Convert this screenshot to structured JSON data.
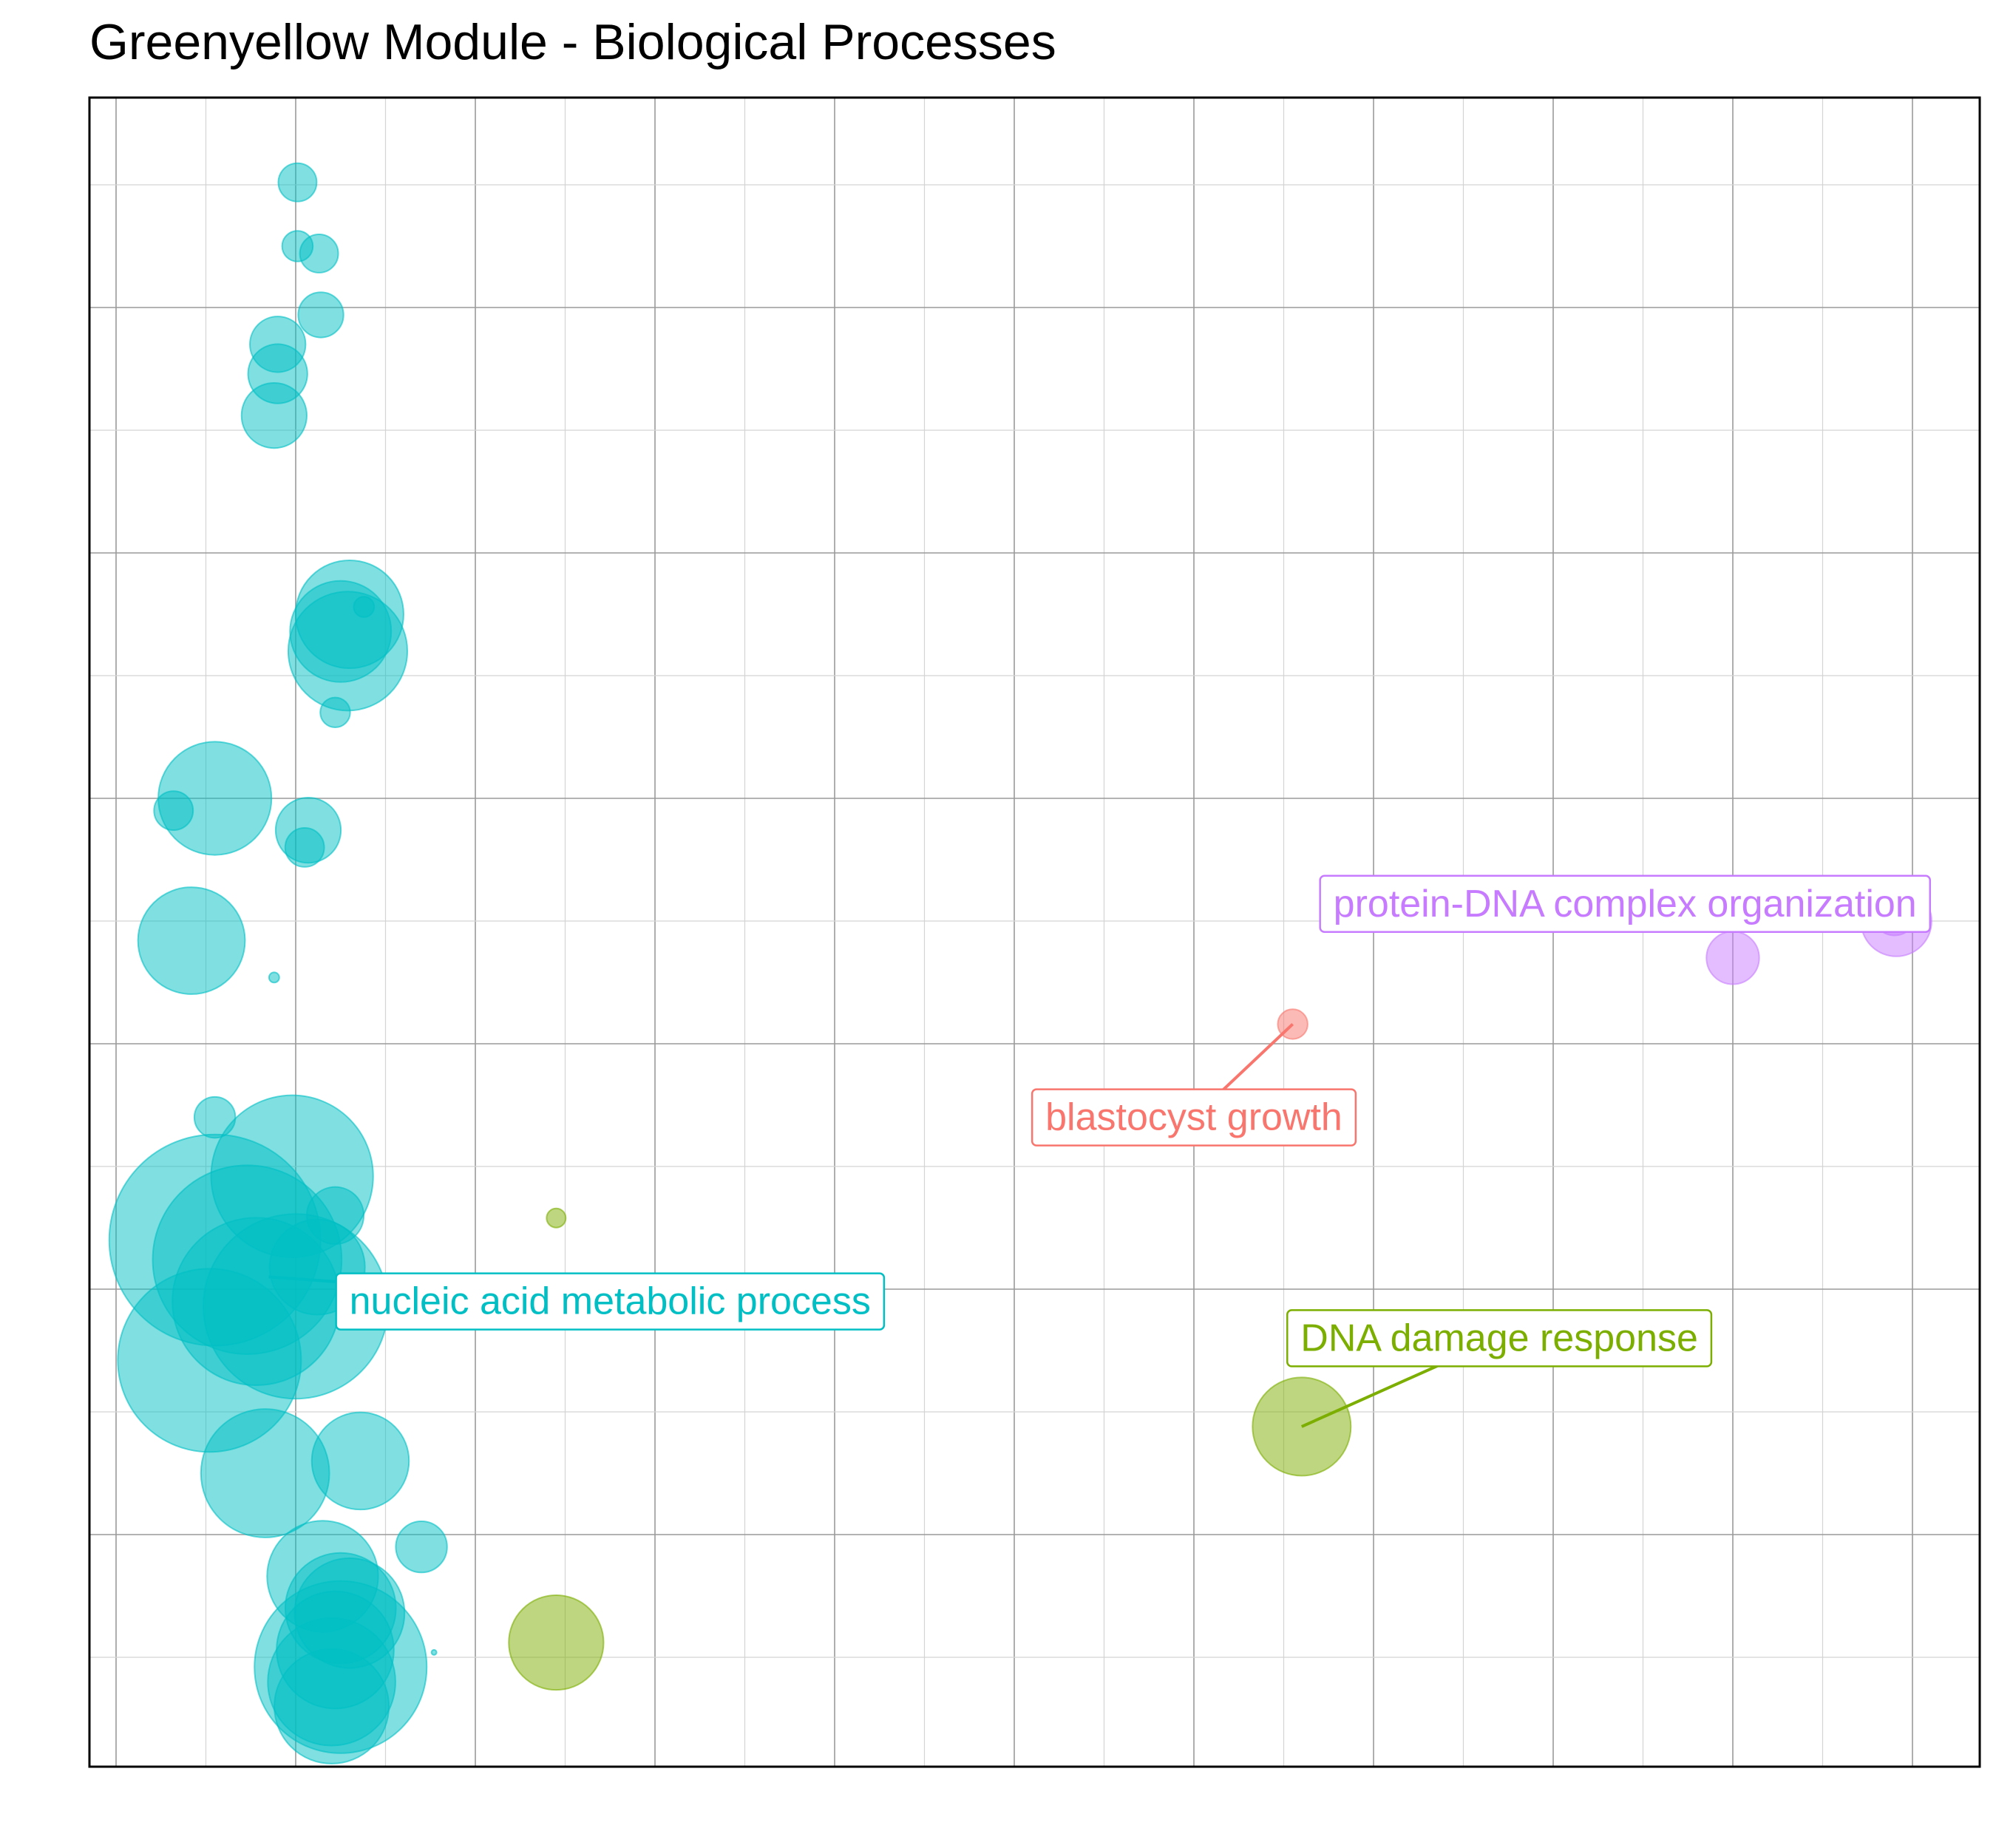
{
  "chart_data": {
    "type": "scatter",
    "title": "Greenyellow Module - Biological Processes",
    "xlabel": "",
    "ylabel": "",
    "xlim": [
      0,
      10.5
    ],
    "ylim": [
      0,
      6.8
    ],
    "grid": true,
    "legend": "none",
    "colors": {
      "cyan": "#00BFC4",
      "green": "#7CAE00",
      "red": "#F8766D",
      "purple": "#C77CFF"
    },
    "bubble_scale": {
      "min_area": 0,
      "max_area": 100
    },
    "points": [
      {
        "x": 1.01,
        "y": 6.51,
        "size": 2.8,
        "group": "cyan"
      },
      {
        "x": 1.01,
        "y": 6.25,
        "size": 1.8,
        "group": "cyan"
      },
      {
        "x": 1.13,
        "y": 6.22,
        "size": 2.8,
        "group": "cyan"
      },
      {
        "x": 1.14,
        "y": 5.97,
        "size": 3.9,
        "group": "cyan"
      },
      {
        "x": 0.9,
        "y": 5.85,
        "size": 5.9,
        "group": "cyan"
      },
      {
        "x": 0.9,
        "y": 5.73,
        "size": 6.7,
        "group": "cyan"
      },
      {
        "x": 0.88,
        "y": 5.56,
        "size": 8.1,
        "group": "cyan"
      },
      {
        "x": 1.3,
        "y": 4.75,
        "size": 22.2,
        "group": "cyan"
      },
      {
        "x": 1.29,
        "y": 4.6,
        "size": 27.0,
        "group": "cyan"
      },
      {
        "x": 1.25,
        "y": 4.68,
        "size": 19.5,
        "group": "cyan"
      },
      {
        "x": 1.38,
        "y": 4.78,
        "size": 0.8,
        "group": "cyan"
      },
      {
        "x": 1.22,
        "y": 4.35,
        "size": 1.7,
        "group": "cyan"
      },
      {
        "x": 0.55,
        "y": 4.0,
        "size": 24.4,
        "group": "cyan"
      },
      {
        "x": 0.32,
        "y": 3.95,
        "size": 2.9,
        "group": "cyan"
      },
      {
        "x": 1.07,
        "y": 3.87,
        "size": 8.1,
        "group": "cyan"
      },
      {
        "x": 1.05,
        "y": 3.8,
        "size": 2.9,
        "group": "cyan"
      },
      {
        "x": 0.42,
        "y": 3.42,
        "size": 21.8,
        "group": "cyan"
      },
      {
        "x": 0.88,
        "y": 3.27,
        "size": 0.2,
        "group": "cyan"
      },
      {
        "x": 0.55,
        "y": 2.7,
        "size": 3.2,
        "group": "cyan"
      },
      {
        "x": 0.98,
        "y": 2.46,
        "size": 50.0,
        "group": "cyan"
      },
      {
        "x": 0.55,
        "y": 2.2,
        "size": 85.0,
        "group": "cyan"
      },
      {
        "x": 1.22,
        "y": 2.3,
        "size": 6.2,
        "group": "cyan"
      },
      {
        "x": 0.73,
        "y": 2.12,
        "size": 68.0,
        "group": "cyan"
      },
      {
        "x": 1.12,
        "y": 2.09,
        "size": 17.3,
        "group": "cyan"
      },
      {
        "x": 0.78,
        "y": 1.95,
        "size": 53.5,
        "group": "cyan"
      },
      {
        "x": 1.0,
        "y": 1.93,
        "size": 65.0,
        "group": "cyan"
      },
      {
        "x": 0.52,
        "y": 1.71,
        "size": 64.0,
        "group": "cyan"
      },
      {
        "x": 1.36,
        "y": 1.3,
        "size": 18.0,
        "group": "cyan"
      },
      {
        "x": 0.83,
        "y": 1.25,
        "size": 31.4,
        "group": "cyan"
      },
      {
        "x": 1.7,
        "y": 0.95,
        "size": 5.0,
        "group": "cyan"
      },
      {
        "x": 1.15,
        "y": 0.83,
        "size": 23.5,
        "group": "cyan"
      },
      {
        "x": 1.25,
        "y": 0.7,
        "size": 23.3,
        "group": "cyan"
      },
      {
        "x": 1.3,
        "y": 0.68,
        "size": 23.0,
        "group": "cyan"
      },
      {
        "x": 1.22,
        "y": 0.53,
        "size": 26.2,
        "group": "cyan"
      },
      {
        "x": 1.25,
        "y": 0.46,
        "size": 56.5,
        "group": "cyan"
      },
      {
        "x": 1.2,
        "y": 0.4,
        "size": 31.0,
        "group": "cyan"
      },
      {
        "x": 1.2,
        "y": 0.3,
        "size": 25.0,
        "group": "cyan"
      },
      {
        "x": 1.77,
        "y": 0.52,
        "size": 0.05,
        "group": "cyan"
      },
      {
        "x": 2.45,
        "y": 2.29,
        "size": 0.7,
        "group": "green"
      },
      {
        "x": 2.45,
        "y": 0.56,
        "size": 17.1,
        "group": "green"
      },
      {
        "x": 6.6,
        "y": 1.44,
        "size": 18.4,
        "group": "green"
      },
      {
        "x": 6.55,
        "y": 3.08,
        "size": 1.7,
        "group": "red"
      },
      {
        "x": 9.0,
        "y": 3.35,
        "size": 5.3,
        "group": "purple"
      },
      {
        "x": 9.91,
        "y": 3.5,
        "size": 9.5,
        "group": "purple"
      },
      {
        "x": 9.9,
        "y": 3.53,
        "size": 3.6,
        "group": "purple"
      }
    ],
    "annotations": [
      {
        "text": "nucleic acid metabolic process",
        "group": "cyan",
        "point_x": 0.85,
        "point_y": 2.05,
        "label_x": 2.75,
        "label_y": 1.95
      },
      {
        "text": "DNA damage response",
        "group": "green",
        "point_x": 6.6,
        "point_y": 1.44,
        "label_x": 7.7,
        "label_y": 1.8
      },
      {
        "text": "blastocyst growth",
        "group": "red",
        "point_x": 6.55,
        "point_y": 3.08,
        "label_x": 6.0,
        "label_y": 2.7
      },
      {
        "text": "protein-DNA complex organization",
        "group": "purple",
        "point_x": 9.91,
        "point_y": 3.5,
        "label_x": 8.4,
        "label_y": 3.57
      }
    ]
  }
}
